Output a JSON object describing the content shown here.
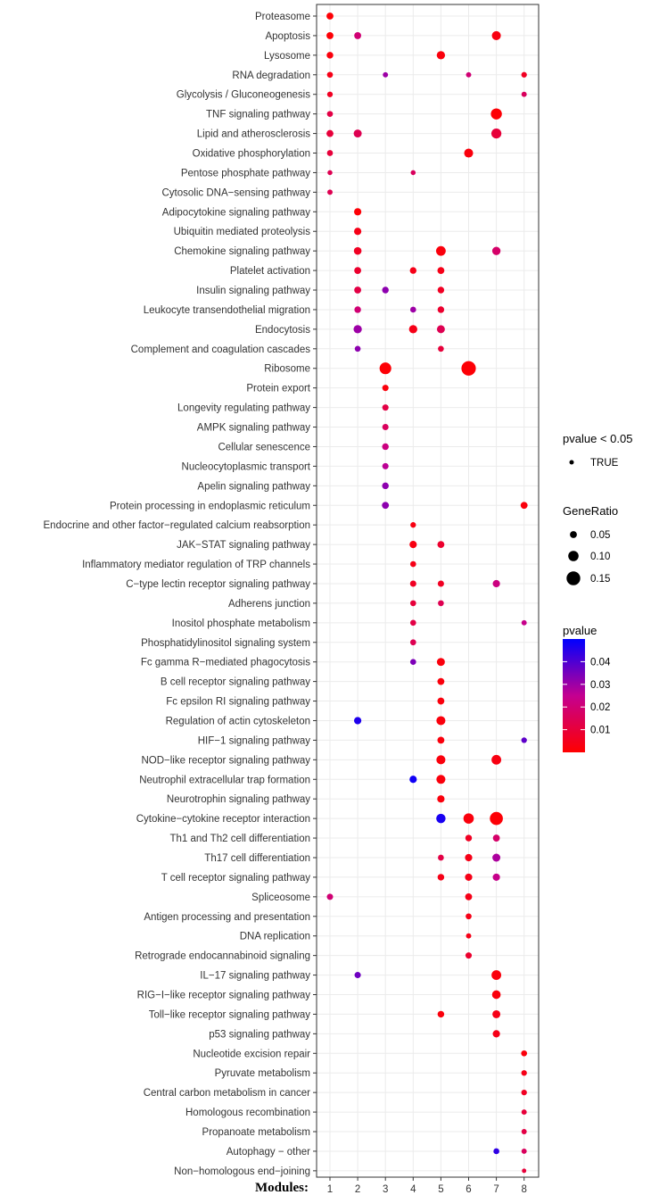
{
  "chart_data": {
    "type": "scatter",
    "title": "",
    "xlabel": "Modules:",
    "ylabel": "",
    "x_ticks": [
      "1",
      "2",
      "3",
      "4",
      "5",
      "6",
      "7",
      "8"
    ],
    "grid": true,
    "categories": [
      "Proteasome",
      "Apoptosis",
      "Lysosome",
      "RNA degradation",
      "Glycolysis / Gluconeogenesis",
      "TNF signaling pathway",
      "Lipid and atherosclerosis",
      "Oxidative phosphorylation",
      "Pentose phosphate pathway",
      "Cytosolic DNA−sensing pathway",
      "Adipocytokine signaling pathway",
      "Ubiquitin mediated proteolysis",
      "Chemokine signaling pathway",
      "Platelet activation",
      "Insulin signaling pathway",
      "Leukocyte transendothelial migration",
      "Endocytosis",
      "Complement and coagulation cascades",
      "Ribosome",
      "Protein export",
      "Longevity regulating pathway",
      "AMPK signaling pathway",
      "Cellular senescence",
      "Nucleocytoplasmic transport",
      "Apelin signaling pathway",
      "Protein processing in endoplasmic reticulum",
      "Endocrine and other factor−regulated calcium reabsorption",
      "JAK−STAT signaling pathway",
      "Inflammatory mediator regulation of TRP channels",
      "C−type lectin receptor signaling pathway",
      "Adherens junction",
      "Inositol phosphate metabolism",
      "Phosphatidylinositol signaling system",
      "Fc gamma R−mediated phagocytosis",
      "B cell receptor signaling pathway",
      "Fc epsilon RI signaling pathway",
      "Regulation of actin cytoskeleton",
      "HIF−1 signaling pathway",
      "NOD−like receptor signaling pathway",
      "Neutrophil extracellular trap formation",
      "Neurotrophin signaling pathway",
      "Cytokine−cytokine receptor interaction",
      "Th1 and Th2 cell differentiation",
      "Th17 cell differentiation",
      "T cell receptor signaling pathway",
      "Spliceosome",
      "Antigen processing and presentation",
      "DNA replication",
      "Retrograde endocannabinoid signaling",
      "IL−17 signaling pathway",
      "RIG−I−like receptor signaling pathway",
      "Toll−like receptor signaling pathway",
      "p53 signaling pathway",
      "Nucleotide excision repair",
      "Pyruvate metabolism",
      "Central carbon metabolism in cancer",
      "Homologous recombination",
      "Propanoate metabolism",
      "Autophagy − other",
      "Non−homologous end−joining"
    ],
    "points": [
      {
        "term": 0,
        "module": 1,
        "gene_ratio": 0.05,
        "pvalue": 0.001
      },
      {
        "term": 1,
        "module": 1,
        "gene_ratio": 0.05,
        "pvalue": 0.001
      },
      {
        "term": 1,
        "module": 2,
        "gene_ratio": 0.05,
        "pvalue": 0.02
      },
      {
        "term": 1,
        "module": 7,
        "gene_ratio": 0.08,
        "pvalue": 0.003
      },
      {
        "term": 2,
        "module": 1,
        "gene_ratio": 0.045,
        "pvalue": 0.002
      },
      {
        "term": 2,
        "module": 5,
        "gene_ratio": 0.07,
        "pvalue": 0.002
      },
      {
        "term": 3,
        "module": 1,
        "gene_ratio": 0.035,
        "pvalue": 0.004
      },
      {
        "term": 3,
        "module": 3,
        "gene_ratio": 0.025,
        "pvalue": 0.03
      },
      {
        "term": 3,
        "module": 6,
        "gene_ratio": 0.025,
        "pvalue": 0.02
      },
      {
        "term": 3,
        "module": 8,
        "gene_ratio": 0.03,
        "pvalue": 0.006
      },
      {
        "term": 4,
        "module": 1,
        "gene_ratio": 0.03,
        "pvalue": 0.006
      },
      {
        "term": 4,
        "module": 8,
        "gene_ratio": 0.025,
        "pvalue": 0.016
      },
      {
        "term": 5,
        "module": 1,
        "gene_ratio": 0.035,
        "pvalue": 0.012
      },
      {
        "term": 5,
        "module": 7,
        "gene_ratio": 0.11,
        "pvalue": 0.001
      },
      {
        "term": 6,
        "module": 1,
        "gene_ratio": 0.05,
        "pvalue": 0.01
      },
      {
        "term": 6,
        "module": 2,
        "gene_ratio": 0.065,
        "pvalue": 0.014
      },
      {
        "term": 6,
        "module": 7,
        "gene_ratio": 0.095,
        "pvalue": 0.01
      },
      {
        "term": 7,
        "module": 1,
        "gene_ratio": 0.035,
        "pvalue": 0.01
      },
      {
        "term": 7,
        "module": 6,
        "gene_ratio": 0.08,
        "pvalue": 0.002
      },
      {
        "term": 8,
        "module": 1,
        "gene_ratio": 0.02,
        "pvalue": 0.014
      },
      {
        "term": 8,
        "module": 4,
        "gene_ratio": 0.02,
        "pvalue": 0.016
      },
      {
        "term": 9,
        "module": 1,
        "gene_ratio": 0.025,
        "pvalue": 0.014
      },
      {
        "term": 10,
        "module": 2,
        "gene_ratio": 0.055,
        "pvalue": 0.001
      },
      {
        "term": 11,
        "module": 2,
        "gene_ratio": 0.055,
        "pvalue": 0.004
      },
      {
        "term": 12,
        "module": 2,
        "gene_ratio": 0.06,
        "pvalue": 0.006
      },
      {
        "term": 12,
        "module": 5,
        "gene_ratio": 0.09,
        "pvalue": 0.002
      },
      {
        "term": 12,
        "module": 7,
        "gene_ratio": 0.07,
        "pvalue": 0.018
      },
      {
        "term": 13,
        "module": 2,
        "gene_ratio": 0.05,
        "pvalue": 0.008
      },
      {
        "term": 13,
        "module": 4,
        "gene_ratio": 0.045,
        "pvalue": 0.004
      },
      {
        "term": 13,
        "module": 5,
        "gene_ratio": 0.05,
        "pvalue": 0.004
      },
      {
        "term": 14,
        "module": 2,
        "gene_ratio": 0.05,
        "pvalue": 0.012
      },
      {
        "term": 14,
        "module": 3,
        "gene_ratio": 0.045,
        "pvalue": 0.032
      },
      {
        "term": 14,
        "module": 5,
        "gene_ratio": 0.045,
        "pvalue": 0.006
      },
      {
        "term": 15,
        "module": 2,
        "gene_ratio": 0.045,
        "pvalue": 0.02
      },
      {
        "term": 15,
        "module": 4,
        "gene_ratio": 0.035,
        "pvalue": 0.03
      },
      {
        "term": 15,
        "module": 5,
        "gene_ratio": 0.045,
        "pvalue": 0.008
      },
      {
        "term": 16,
        "module": 2,
        "gene_ratio": 0.07,
        "pvalue": 0.03
      },
      {
        "term": 16,
        "module": 4,
        "gene_ratio": 0.07,
        "pvalue": 0.004
      },
      {
        "term": 16,
        "module": 5,
        "gene_ratio": 0.065,
        "pvalue": 0.014
      },
      {
        "term": 17,
        "module": 2,
        "gene_ratio": 0.035,
        "pvalue": 0.032
      },
      {
        "term": 17,
        "module": 5,
        "gene_ratio": 0.035,
        "pvalue": 0.01
      },
      {
        "term": 18,
        "module": 3,
        "gene_ratio": 0.12,
        "pvalue": 0.001
      },
      {
        "term": 18,
        "module": 6,
        "gene_ratio": 0.16,
        "pvalue": 0.001
      },
      {
        "term": 19,
        "module": 3,
        "gene_ratio": 0.04,
        "pvalue": 0.002
      },
      {
        "term": 20,
        "module": 3,
        "gene_ratio": 0.04,
        "pvalue": 0.012
      },
      {
        "term": 21,
        "module": 3,
        "gene_ratio": 0.04,
        "pvalue": 0.016
      },
      {
        "term": 22,
        "module": 3,
        "gene_ratio": 0.045,
        "pvalue": 0.022
      },
      {
        "term": 23,
        "module": 3,
        "gene_ratio": 0.04,
        "pvalue": 0.026
      },
      {
        "term": 24,
        "module": 3,
        "gene_ratio": 0.045,
        "pvalue": 0.032
      },
      {
        "term": 25,
        "module": 3,
        "gene_ratio": 0.05,
        "pvalue": 0.032
      },
      {
        "term": 25,
        "module": 8,
        "gene_ratio": 0.05,
        "pvalue": 0.002
      },
      {
        "term": 26,
        "module": 4,
        "gene_ratio": 0.03,
        "pvalue": 0.003
      },
      {
        "term": 27,
        "module": 4,
        "gene_ratio": 0.055,
        "pvalue": 0.003
      },
      {
        "term": 27,
        "module": 5,
        "gene_ratio": 0.05,
        "pvalue": 0.008
      },
      {
        "term": 28,
        "module": 4,
        "gene_ratio": 0.035,
        "pvalue": 0.004
      },
      {
        "term": 29,
        "module": 4,
        "gene_ratio": 0.04,
        "pvalue": 0.006
      },
      {
        "term": 29,
        "module": 5,
        "gene_ratio": 0.04,
        "pvalue": 0.006
      },
      {
        "term": 29,
        "module": 7,
        "gene_ratio": 0.055,
        "pvalue": 0.022
      },
      {
        "term": 30,
        "module": 4,
        "gene_ratio": 0.035,
        "pvalue": 0.01
      },
      {
        "term": 30,
        "module": 5,
        "gene_ratio": 0.035,
        "pvalue": 0.014
      },
      {
        "term": 31,
        "module": 4,
        "gene_ratio": 0.035,
        "pvalue": 0.012
      },
      {
        "term": 31,
        "module": 8,
        "gene_ratio": 0.025,
        "pvalue": 0.024
      },
      {
        "term": 32,
        "module": 4,
        "gene_ratio": 0.035,
        "pvalue": 0.014
      },
      {
        "term": 33,
        "module": 4,
        "gene_ratio": 0.035,
        "pvalue": 0.034
      },
      {
        "term": 33,
        "module": 5,
        "gene_ratio": 0.065,
        "pvalue": 0.002
      },
      {
        "term": 34,
        "module": 5,
        "gene_ratio": 0.05,
        "pvalue": 0.002
      },
      {
        "term": 35,
        "module": 5,
        "gene_ratio": 0.05,
        "pvalue": 0.002
      },
      {
        "term": 36,
        "module": 2,
        "gene_ratio": 0.055,
        "pvalue": 0.046
      },
      {
        "term": 36,
        "module": 5,
        "gene_ratio": 0.08,
        "pvalue": 0.002
      },
      {
        "term": 37,
        "module": 5,
        "gene_ratio": 0.05,
        "pvalue": 0.002
      },
      {
        "term": 37,
        "module": 8,
        "gene_ratio": 0.03,
        "pvalue": 0.038
      },
      {
        "term": 38,
        "module": 5,
        "gene_ratio": 0.08,
        "pvalue": 0.002
      },
      {
        "term": 38,
        "module": 7,
        "gene_ratio": 0.09,
        "pvalue": 0.003
      },
      {
        "term": 39,
        "module": 4,
        "gene_ratio": 0.055,
        "pvalue": 0.048
      },
      {
        "term": 39,
        "module": 5,
        "gene_ratio": 0.08,
        "pvalue": 0.002
      },
      {
        "term": 40,
        "module": 5,
        "gene_ratio": 0.055,
        "pvalue": 0.002
      },
      {
        "term": 41,
        "module": 5,
        "gene_ratio": 0.085,
        "pvalue": 0.047
      },
      {
        "term": 41,
        "module": 6,
        "gene_ratio": 0.1,
        "pvalue": 0.002
      },
      {
        "term": 41,
        "module": 7,
        "gene_ratio": 0.14,
        "pvalue": 0.001
      },
      {
        "term": 42,
        "module": 6,
        "gene_ratio": 0.045,
        "pvalue": 0.006
      },
      {
        "term": 42,
        "module": 7,
        "gene_ratio": 0.05,
        "pvalue": 0.018
      },
      {
        "term": 43,
        "module": 5,
        "gene_ratio": 0.035,
        "pvalue": 0.012
      },
      {
        "term": 43,
        "module": 6,
        "gene_ratio": 0.055,
        "pvalue": 0.004
      },
      {
        "term": 43,
        "module": 7,
        "gene_ratio": 0.065,
        "pvalue": 0.028
      },
      {
        "term": 44,
        "module": 5,
        "gene_ratio": 0.045,
        "pvalue": 0.004
      },
      {
        "term": 44,
        "module": 6,
        "gene_ratio": 0.055,
        "pvalue": 0.004
      },
      {
        "term": 44,
        "module": 7,
        "gene_ratio": 0.055,
        "pvalue": 0.024
      },
      {
        "term": 45,
        "module": 1,
        "gene_ratio": 0.04,
        "pvalue": 0.02
      },
      {
        "term": 45,
        "module": 6,
        "gene_ratio": 0.05,
        "pvalue": 0.004
      },
      {
        "term": 46,
        "module": 6,
        "gene_ratio": 0.035,
        "pvalue": 0.004
      },
      {
        "term": 47,
        "module": 6,
        "gene_ratio": 0.025,
        "pvalue": 0.004
      },
      {
        "term": 48,
        "module": 6,
        "gene_ratio": 0.04,
        "pvalue": 0.008
      },
      {
        "term": 49,
        "module": 2,
        "gene_ratio": 0.04,
        "pvalue": 0.036
      },
      {
        "term": 49,
        "module": 7,
        "gene_ratio": 0.09,
        "pvalue": 0.002
      },
      {
        "term": 50,
        "module": 7,
        "gene_ratio": 0.075,
        "pvalue": 0.002
      },
      {
        "term": 51,
        "module": 5,
        "gene_ratio": 0.045,
        "pvalue": 0.002
      },
      {
        "term": 51,
        "module": 7,
        "gene_ratio": 0.065,
        "pvalue": 0.004
      },
      {
        "term": 52,
        "module": 7,
        "gene_ratio": 0.055,
        "pvalue": 0.004
      },
      {
        "term": 53,
        "module": 8,
        "gene_ratio": 0.035,
        "pvalue": 0.002
      },
      {
        "term": 54,
        "module": 8,
        "gene_ratio": 0.03,
        "pvalue": 0.004
      },
      {
        "term": 55,
        "module": 8,
        "gene_ratio": 0.03,
        "pvalue": 0.006
      },
      {
        "term": 56,
        "module": 8,
        "gene_ratio": 0.025,
        "pvalue": 0.01
      },
      {
        "term": 57,
        "module": 8,
        "gene_ratio": 0.025,
        "pvalue": 0.012
      },
      {
        "term": 58,
        "module": 7,
        "gene_ratio": 0.035,
        "pvalue": 0.044
      },
      {
        "term": 58,
        "module": 8,
        "gene_ratio": 0.025,
        "pvalue": 0.016
      },
      {
        "term": 59,
        "module": 8,
        "gene_ratio": 0.012,
        "pvalue": 0.01
      }
    ],
    "legend": {
      "pvalue_flag": {
        "title": "pvalue < 0.05",
        "label": "TRUE"
      },
      "gene_ratio": {
        "title": "GeneRatio",
        "breaks": [
          "0.05",
          "0.10",
          "0.15"
        ],
        "values": [
          0.05,
          0.1,
          0.15
        ]
      },
      "pvalue": {
        "title": "pvalue",
        "breaks": [
          "0.04",
          "0.03",
          "0.02",
          "0.01"
        ],
        "values": [
          0.04,
          0.03,
          0.02,
          0.01
        ],
        "range": [
          0,
          0.05
        ],
        "low_color": "#ff0000",
        "high_color": "#0000ff"
      }
    },
    "colors": {
      "grid": "#ebebeb",
      "panel_border": "#333333",
      "axis_text": "#333333"
    }
  }
}
